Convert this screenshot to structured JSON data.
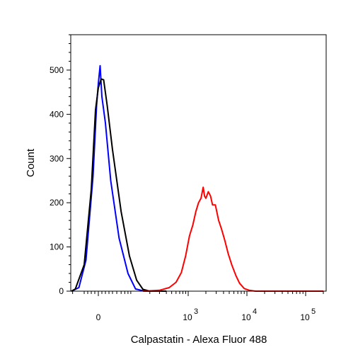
{
  "chart_data": {
    "type": "line",
    "title": "",
    "xlabel": "Calpastatin - Alexa Fluor 488",
    "ylabel": "Count",
    "x_scale": "biexponential",
    "ylim": [
      0,
      580
    ],
    "x_ticks": [
      {
        "value": 0,
        "label": "0"
      },
      {
        "value": 1000,
        "label": "10",
        "exp": "3"
      },
      {
        "value": 10000,
        "label": "10",
        "exp": "4"
      },
      {
        "value": 100000,
        "label": "10",
        "exp": "5"
      }
    ],
    "y_ticks": [
      0,
      100,
      200,
      300,
      400,
      500
    ],
    "grid": false,
    "legend": "none",
    "series": [
      {
        "color": "#0000ff",
        "points": [
          [
            -120,
            0
          ],
          [
            -60,
            8
          ],
          [
            -35,
            70
          ],
          [
            -15,
            260
          ],
          [
            -5,
            420
          ],
          [
            0,
            470
          ],
          [
            5,
            510
          ],
          [
            10,
            440
          ],
          [
            20,
            380
          ],
          [
            35,
            250
          ],
          [
            55,
            120
          ],
          [
            80,
            40
          ],
          [
            110,
            5
          ],
          [
            160,
            0
          ],
          [
            300,
            0
          ]
        ]
      },
      {
        "color": "#000000",
        "points": [
          [
            -140,
            0
          ],
          [
            -80,
            5
          ],
          [
            -40,
            60
          ],
          [
            -20,
            230
          ],
          [
            -8,
            410
          ],
          [
            0,
            460
          ],
          [
            8,
            480
          ],
          [
            15,
            478
          ],
          [
            25,
            420
          ],
          [
            40,
            320
          ],
          [
            60,
            180
          ],
          [
            85,
            80
          ],
          [
            115,
            25
          ],
          [
            150,
            4
          ],
          [
            200,
            0
          ],
          [
            400,
            0
          ]
        ]
      },
      {
        "color": "#ff0000",
        "points": [
          [
            150,
            0
          ],
          [
            300,
            2
          ],
          [
            450,
            8
          ],
          [
            600,
            20
          ],
          [
            750,
            42
          ],
          [
            900,
            80
          ],
          [
            1050,
            125
          ],
          [
            1200,
            150
          ],
          [
            1350,
            180
          ],
          [
            1500,
            200
          ],
          [
            1650,
            210
          ],
          [
            1800,
            235
          ],
          [
            1900,
            215
          ],
          [
            2000,
            210
          ],
          [
            2200,
            225
          ],
          [
            2400,
            215
          ],
          [
            2600,
            195
          ],
          [
            2900,
            195
          ],
          [
            3300,
            160
          ],
          [
            3700,
            140
          ],
          [
            4200,
            115
          ],
          [
            4800,
            85
          ],
          [
            5500,
            60
          ],
          [
            6500,
            35
          ],
          [
            7500,
            18
          ],
          [
            9000,
            6
          ],
          [
            11000,
            2
          ],
          [
            14000,
            0
          ],
          [
            100000,
            0
          ],
          [
            200000,
            0
          ]
        ]
      }
    ]
  }
}
